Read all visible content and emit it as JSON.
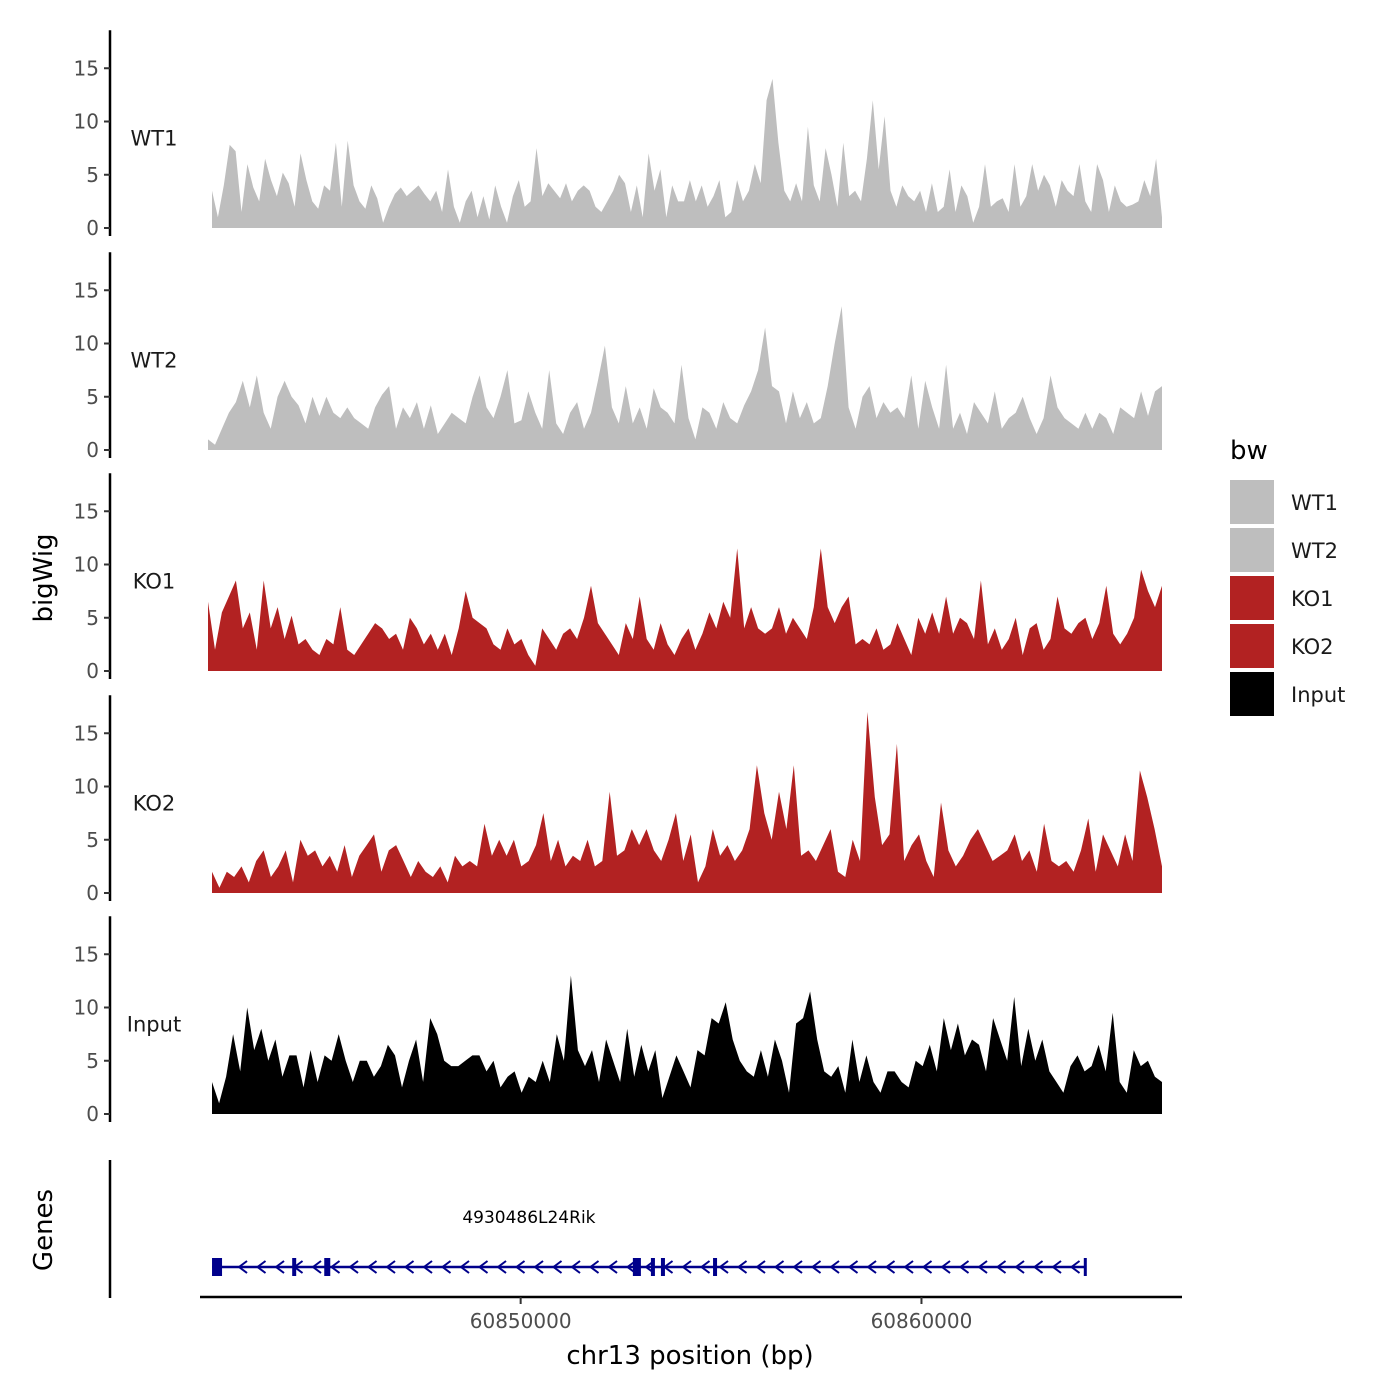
{
  "chart_data": {
    "type": "area",
    "chromosome": "chr13",
    "xlabel": "chr13 position (bp)",
    "ylabel": "bigWig",
    "genes_axis_label": "Genes",
    "xlim": [
      60842000,
      60866500
    ],
    "xticks": [
      60850000,
      60860000
    ],
    "xtick_labels": [
      "60850000",
      "60860000"
    ],
    "ylim": [
      0,
      18
    ],
    "yticks": [
      0,
      5,
      10,
      15
    ],
    "ytick_labels": [
      "0",
      "5",
      "10",
      "15"
    ],
    "legend_title": "bw",
    "legend_position": "right",
    "series": [
      {
        "name": "WT1",
        "color": "#bebebe",
        "start": 60842300,
        "end": 60866000,
        "values": [
          3.5,
          1,
          4,
          7.8,
          7.2,
          1.5,
          6,
          3.8,
          2.5,
          6.5,
          4.5,
          3,
          5.2,
          4.2,
          2,
          7,
          4.5,
          2.5,
          1.8,
          4,
          3.5,
          8,
          2,
          8.2,
          4,
          2.5,
          1.8,
          4,
          2.8,
          0.5,
          2,
          3.2,
          3.8,
          3,
          3.5,
          4,
          3.2,
          2.5,
          3.5,
          1.5,
          5.5,
          2,
          0.5,
          2.5,
          3.5,
          1,
          3,
          0.8,
          4,
          2,
          0.5,
          3,
          4.5,
          2,
          2.5,
          7.5,
          3,
          4.2,
          3.5,
          2.8,
          4.2,
          2.5,
          3.5,
          4,
          3.5,
          2,
          1.5,
          2.5,
          3.5,
          5,
          4.2,
          1.5,
          4,
          1,
          7,
          3.5,
          5.5,
          1,
          4,
          2.5,
          2.5,
          4.5,
          2.5,
          4,
          2,
          3,
          4.5,
          1,
          1.5,
          4.5,
          2.5,
          3.5,
          6,
          4.2,
          12,
          14,
          8,
          3.5,
          2.5,
          4.2,
          2.5,
          9.5,
          4,
          2.5,
          7.5,
          5,
          2,
          8,
          3,
          3.5,
          2.5,
          6.5,
          12,
          5.5,
          10.5,
          3.5,
          2,
          4,
          3,
          2.5,
          3.5,
          1.5,
          4.2,
          1.5,
          2,
          5.5,
          1.5,
          4,
          3,
          0.5,
          2,
          6,
          2,
          2.5,
          2.8,
          1.5,
          6,
          2,
          3,
          6,
          3.5,
          5,
          4,
          2,
          4.5,
          3.5,
          3,
          6,
          2.5,
          1.5,
          6,
          4.5,
          1.5,
          4,
          2.5,
          2,
          2.2,
          2.5,
          4.5,
          3,
          6.5,
          1
        ]
      },
      {
        "name": "WT2",
        "color": "#bebebe",
        "start": 60842200,
        "end": 60866000,
        "values": [
          1,
          0.5,
          2,
          3.5,
          4.5,
          6.5,
          4,
          7,
          3.5,
          2,
          5,
          6.5,
          5,
          4.2,
          2.5,
          5,
          3.2,
          5,
          3.5,
          3,
          4,
          3,
          2.5,
          2,
          4,
          5.2,
          6,
          2,
          4,
          3,
          4.5,
          2,
          4.2,
          1.5,
          2.5,
          3.5,
          3,
          2.5,
          5,
          7,
          4,
          3,
          5,
          7.5,
          2.5,
          2.8,
          5.5,
          3.5,
          2,
          7.5,
          2.5,
          1.5,
          3.5,
          4.5,
          2,
          3.5,
          6.5,
          9.8,
          4,
          2.5,
          6,
          2.5,
          4,
          2,
          5.8,
          4,
          3.5,
          2.5,
          8,
          3,
          1,
          4,
          3.5,
          2,
          4.5,
          3,
          2.5,
          4.2,
          5.5,
          7.5,
          11.5,
          6,
          5.5,
          2.5,
          5.5,
          3,
          4.5,
          2.5,
          3,
          6,
          10,
          13.5,
          4,
          2,
          5,
          6,
          3,
          4.5,
          3.5,
          4,
          3,
          7,
          2,
          6.5,
          4,
          2,
          8,
          2,
          3.5,
          1.5,
          4.5,
          3.5,
          2.5,
          5.5,
          2,
          3,
          3.5,
          5,
          3,
          1.5,
          3,
          7,
          4,
          3,
          2.5,
          2,
          3.5,
          2,
          3.5,
          3,
          1.5,
          4,
          3.5,
          3,
          5.5,
          3.2,
          5.5,
          6
        ]
      },
      {
        "name": "KO1",
        "color": "#b22222",
        "start": 60842200,
        "end": 60866000,
        "values": [
          6.5,
          2,
          5.5,
          7,
          8.5,
          4,
          5.5,
          2,
          8.5,
          4,
          6,
          3,
          5.2,
          2.5,
          3,
          2,
          1.5,
          3,
          2.5,
          6,
          2,
          1.5,
          2.5,
          3.5,
          4.5,
          4,
          3,
          3.5,
          2,
          5,
          4,
          2.5,
          3.5,
          2,
          3.5,
          1.5,
          4,
          7.5,
          5,
          4.5,
          4,
          2.5,
          2,
          4,
          2.5,
          3,
          1.5,
          0.5,
          4,
          3,
          2,
          3.5,
          4,
          3,
          5,
          8,
          4.5,
          3.5,
          2.5,
          1.5,
          4.5,
          3,
          7,
          3,
          2,
          4.5,
          2.5,
          1.5,
          3,
          4,
          2,
          3.5,
          5.5,
          4,
          6.5,
          5,
          11.5,
          4,
          6,
          4,
          3.5,
          4,
          6,
          3.5,
          5,
          4,
          3,
          6,
          11.5,
          6,
          4.5,
          6,
          7,
          2.5,
          3,
          2.5,
          4,
          2,
          2.5,
          4.5,
          3,
          1.5,
          5,
          3.5,
          5.5,
          3.5,
          7,
          3.5,
          5,
          4.5,
          3,
          8.5,
          2.5,
          4,
          2,
          3,
          5,
          1.5,
          4,
          4.5,
          2,
          3,
          7,
          4,
          3.5,
          4.5,
          5,
          3,
          4.5,
          8,
          3.5,
          2.5,
          3.5,
          5,
          9.5,
          7.5,
          6,
          8
        ]
      },
      {
        "name": "KO2",
        "color": "#b22222",
        "start": 60842300,
        "end": 60866000,
        "values": [
          2,
          0.5,
          2,
          1.5,
          2.5,
          1,
          3,
          4,
          1.5,
          2.5,
          4,
          1,
          5,
          3.5,
          4,
          2.5,
          3.5,
          2,
          4.5,
          1.5,
          3.5,
          4.5,
          5.5,
          2,
          4,
          4.5,
          3,
          1.5,
          3,
          2,
          1.5,
          2.5,
          1,
          3.5,
          2.5,
          3,
          2.5,
          6.5,
          3.5,
          5,
          3.5,
          5,
          2.5,
          3,
          4.5,
          7.5,
          3,
          5,
          2.5,
          3.5,
          3,
          5,
          2.5,
          3,
          9.5,
          3.5,
          4,
          6,
          4.5,
          6,
          4,
          3,
          5,
          7.5,
          3,
          5.5,
          1,
          2.5,
          6,
          3.5,
          4.5,
          3,
          4,
          6,
          12,
          7.5,
          5,
          9.5,
          6,
          12,
          3.5,
          4,
          3,
          4.5,
          6,
          2,
          1.5,
          5,
          3,
          17,
          9,
          4.5,
          5.5,
          14,
          3,
          4.5,
          5.5,
          3,
          1.5,
          8.5,
          4,
          2.5,
          3.5,
          5,
          6,
          4.5,
          3,
          3.5,
          4,
          5.5,
          3,
          4,
          2,
          6.5,
          3,
          2.5,
          3,
          2,
          4,
          7,
          2,
          5.5,
          4,
          2.5,
          5.5,
          3,
          11.5,
          9,
          6,
          2.5
        ]
      },
      {
        "name": "Input",
        "color": "#000000",
        "start": 60842300,
        "end": 60866000,
        "values": [
          3,
          1,
          3.5,
          7.5,
          4,
          10,
          6,
          8,
          5,
          7,
          3.5,
          5.5,
          5.5,
          2.5,
          6,
          3,
          5.5,
          5,
          7.5,
          5,
          3,
          5,
          5,
          3.5,
          4.5,
          6.5,
          5.5,
          2.5,
          5,
          7,
          3,
          9,
          7.5,
          5,
          4.5,
          4.5,
          5,
          5.5,
          5.5,
          4,
          5,
          2.5,
          3.5,
          4,
          2,
          3.5,
          3,
          5,
          3,
          7.5,
          5,
          13,
          6,
          4.5,
          6,
          3,
          7,
          5,
          3,
          8,
          3.5,
          6.5,
          4,
          6,
          1.5,
          3.5,
          5.5,
          4,
          2.5,
          6,
          5.5,
          9,
          8.5,
          10.5,
          7,
          5,
          4,
          3.5,
          6,
          3.5,
          7,
          5,
          2,
          8.5,
          9,
          11.5,
          7,
          4,
          3.5,
          4.5,
          2,
          7,
          3,
          5.5,
          3,
          2,
          4,
          4,
          3,
          2.5,
          5,
          4.5,
          6.5,
          4,
          9,
          6,
          8.5,
          5.5,
          7,
          6.5,
          4,
          9,
          7,
          5,
          11,
          4.5,
          8,
          5,
          7,
          4,
          3,
          2,
          4.5,
          5.5,
          4,
          4.5,
          6.5,
          4,
          9.5,
          3,
          2,
          6,
          4.5,
          5,
          3.5,
          3
        ]
      }
    ],
    "legend": [
      {
        "name": "WT1",
        "color": "#bebebe"
      },
      {
        "name": "WT2",
        "color": "#bebebe"
      },
      {
        "name": "KO1",
        "color": "#b22222"
      },
      {
        "name": "KO2",
        "color": "#b22222"
      },
      {
        "name": "Input",
        "color": "#000000"
      }
    ],
    "genes": [
      {
        "name": "4930486L24Rik",
        "strand": "-",
        "start": 60842300,
        "end": 60864100,
        "color": "#00008b",
        "exons": [
          [
            60842300,
            60842550
          ],
          [
            60844300,
            60844400
          ],
          [
            60845100,
            60845250
          ],
          [
            60852800,
            60853000
          ],
          [
            60853250,
            60853350
          ],
          [
            60853500,
            60853600
          ],
          [
            60854800,
            60854900
          ],
          [
            60864050,
            60864100
          ]
        ]
      }
    ]
  }
}
